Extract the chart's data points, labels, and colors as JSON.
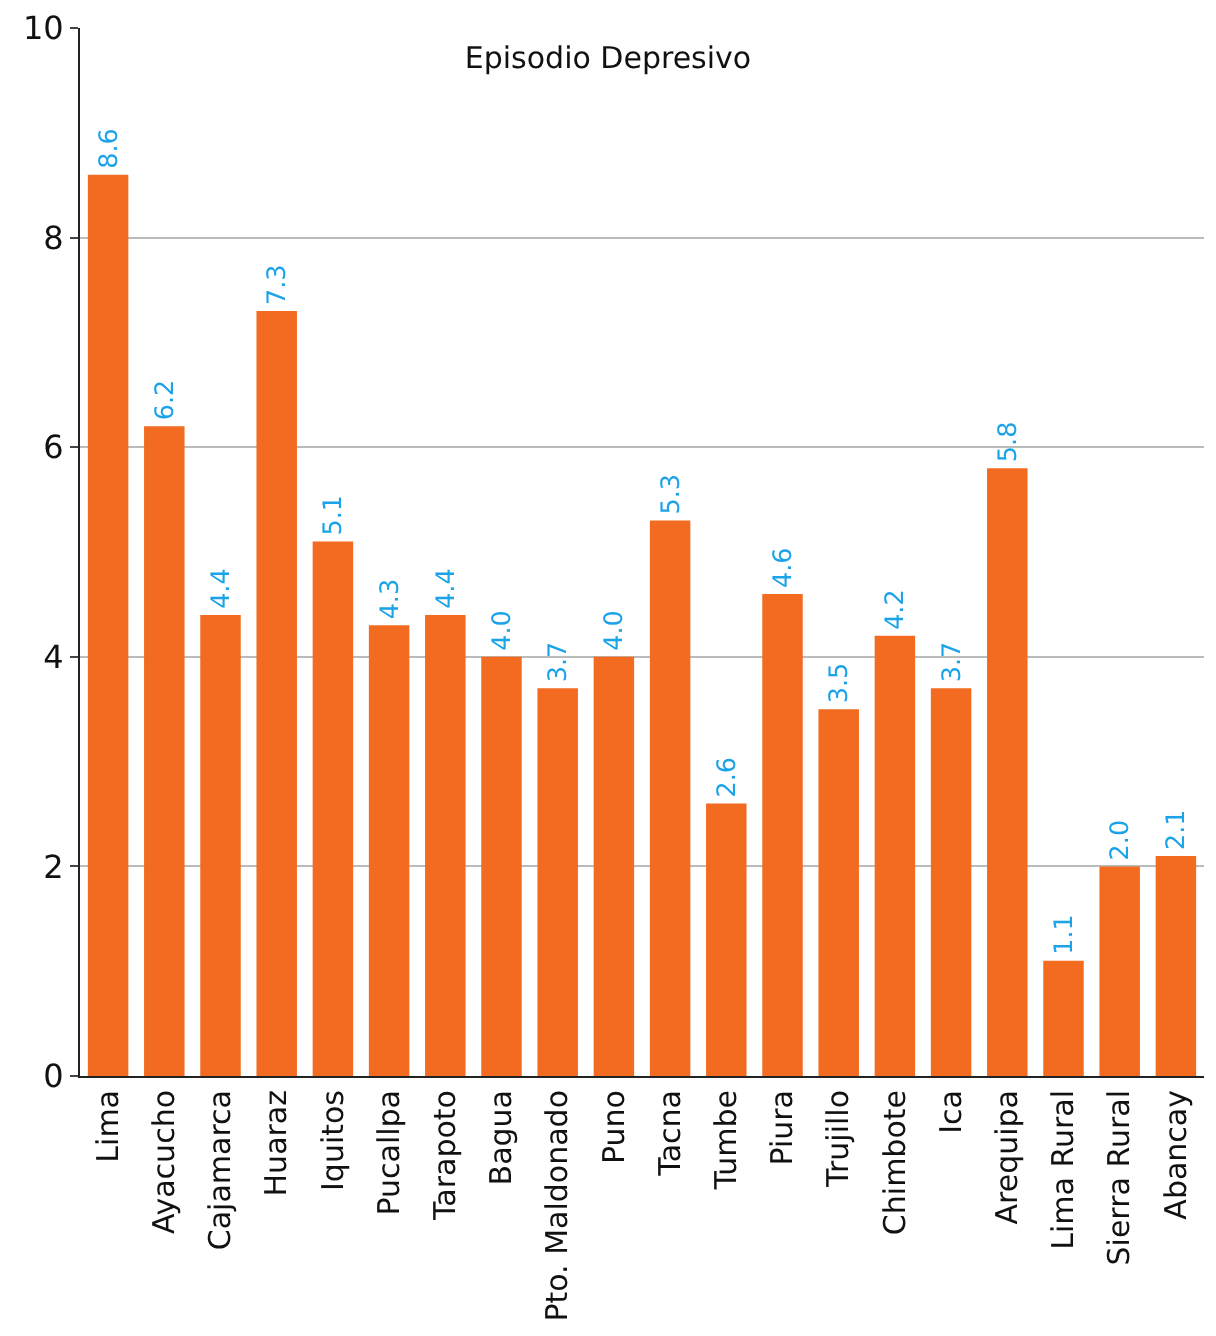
{
  "chart_data": {
    "type": "bar",
    "title": "Episodio Depresivo",
    "categories": [
      "Lima",
      "Ayacucho",
      "Cajamarca",
      "Huaraz",
      "Iquitos",
      "Pucallpa",
      "Tarapoto",
      "Bagua",
      "Pto. Maldonado",
      "Puno",
      "Tacna",
      "Tumbe",
      "Piura",
      "Trujillo",
      "Chimbote",
      "Ica",
      "Arequipa",
      "Lima Rural",
      "Sierra Rural",
      "Abancay"
    ],
    "values": [
      8.6,
      6.2,
      4.4,
      7.3,
      5.1,
      4.3,
      4.4,
      4.0,
      3.7,
      4.0,
      5.3,
      2.6,
      4.6,
      3.5,
      4.2,
      3.7,
      5.8,
      1.1,
      2.0,
      2.1
    ],
    "value_labels": [
      "8.6",
      "6.2",
      "4.4",
      "7.3",
      "5.1",
      "4.3",
      "4.4",
      "4.0",
      "3.7",
      "4.0",
      "5.3",
      "2.6",
      "4.6",
      "3.5",
      "4.2",
      "3.7",
      "5.8",
      "1.1",
      "2.0",
      "2.1"
    ],
    "color": "#f26b21",
    "ylim": [
      0,
      10
    ],
    "yticks": [
      0,
      2,
      4,
      6,
      8,
      10
    ],
    "grid": "y"
  }
}
